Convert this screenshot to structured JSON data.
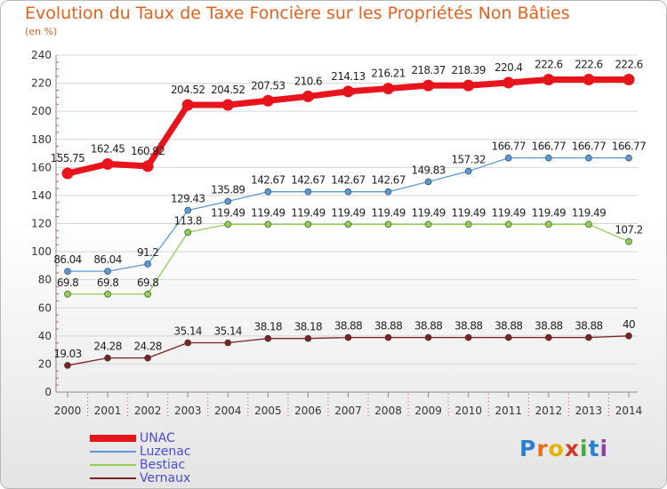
{
  "header": {
    "title": "Evolution du Taux de Taxe Foncière sur les Propriétés Non Bâties",
    "unit": "(en %)"
  },
  "logo": {
    "text": "Proxiti",
    "colors": [
      "#2b7fd0",
      "#e86e1c",
      "#e0b400",
      "#d03a2a",
      "#46a83a",
      "#2b7fd0",
      "#8e3db0"
    ]
  },
  "chart_data": {
    "type": "line",
    "title": "Evolution du Taux de Taxe Foncière sur les Propriétés Non Bâties",
    "ylabel": "(en %)",
    "xlabel": "",
    "ylim": [
      0,
      240
    ],
    "yticks": [
      0,
      20,
      40,
      60,
      80,
      100,
      120,
      140,
      160,
      180,
      200,
      220,
      240
    ],
    "grid": "horizontal",
    "legend_position": "bottom-left",
    "x": [
      "2000",
      "2001",
      "2002",
      "2003",
      "2004",
      "2005",
      "2006",
      "2007",
      "2008",
      "2009",
      "2010",
      "2011",
      "2012",
      "2013",
      "2014"
    ],
    "series": [
      {
        "name": "UNAC",
        "color": "#e8141c",
        "width": 7,
        "marker": 6,
        "values": [
          155.75,
          162.45,
          160.92,
          204.52,
          204.52,
          207.53,
          210.6,
          214.13,
          216.21,
          218.37,
          218.39,
          220.4,
          222.6,
          222.6,
          222.6
        ],
        "labels": [
          "155.75",
          "162.45",
          "160.92",
          "204.52",
          "204.52",
          "207.53",
          "210.6",
          "214.13",
          "216.21",
          "218.37",
          "218.39",
          "220.4",
          "222.6",
          "222.6",
          "222.6"
        ]
      },
      {
        "name": "Luzenac",
        "color": "#5b9bd5",
        "width": 1.3,
        "marker": 3.5,
        "values": [
          86.04,
          86.04,
          91.2,
          129.43,
          135.89,
          142.67,
          142.67,
          142.67,
          142.67,
          149.83,
          157.32,
          166.77,
          166.77,
          166.77,
          166.77
        ],
        "labels": [
          "86.04",
          "86.04",
          "91.2",
          "129.43",
          "135.89",
          "142.67",
          "142.67",
          "142.67",
          "142.67",
          "149.83",
          "157.32",
          "166.77",
          "166.77",
          "166.77",
          "166.77"
        ]
      },
      {
        "name": "Bestiac",
        "color": "#92d050",
        "width": 1.3,
        "marker": 3.5,
        "values": [
          69.8,
          69.8,
          69.8,
          113.8,
          119.49,
          119.49,
          119.49,
          119.49,
          119.49,
          119.49,
          119.49,
          119.49,
          119.49,
          119.49,
          107.2
        ],
        "labels": [
          "69.8",
          "69.8",
          "69.8",
          "113.8",
          "119.49",
          "119.49",
          "119.49",
          "119.49",
          "119.49",
          "119.49",
          "119.49",
          "119.49",
          "119.49",
          "119.49",
          "107.2"
        ]
      },
      {
        "name": "Vernaux",
        "color": "#7b2222",
        "width": 1.3,
        "marker": 3.5,
        "values": [
          19.03,
          24.28,
          24.28,
          35.14,
          35.14,
          38.18,
          38.18,
          38.88,
          38.88,
          38.88,
          38.88,
          38.88,
          38.88,
          38.88,
          40
        ],
        "labels": [
          "19.03",
          "24.28",
          "24.28",
          "35.14",
          "35.14",
          "38.18",
          "38.18",
          "38.88",
          "38.88",
          "38.88",
          "38.88",
          "38.88",
          "38.88",
          "38.88",
          "40"
        ]
      }
    ]
  }
}
